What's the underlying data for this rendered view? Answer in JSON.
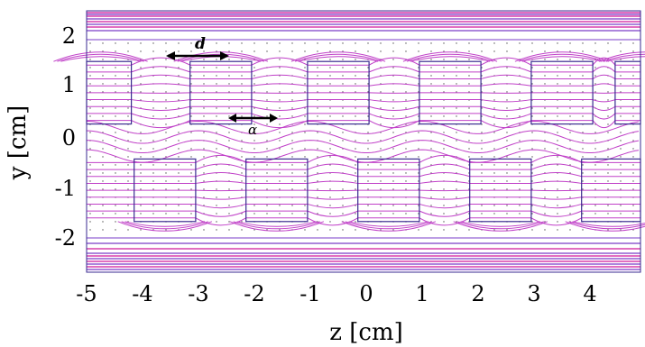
{
  "axes": {
    "xlabel": "z [cm]",
    "ylabel": "y [cm]",
    "xticks": [
      "-5",
      "-4",
      "-3",
      "-2",
      "-1",
      "0",
      "1",
      "2",
      "3",
      "4"
    ],
    "yticks": [
      "2",
      "1",
      "0",
      "-1",
      "-2"
    ],
    "xlim": [
      -5,
      5
    ],
    "ylim": [
      -2.5,
      2.5
    ]
  },
  "annotations": {
    "d_label": "d",
    "alpha_label": "α"
  },
  "structure": {
    "upper_row_centers_z": [
      -4.75,
      -2.6,
      -0.5,
      1.5,
      3.5,
      5.0
    ],
    "lower_row_centers_z": [
      -3.6,
      -1.6,
      0.4,
      2.4,
      4.4
    ],
    "upper_y_range": [
      0.35,
      1.6
    ],
    "lower_y_range": [
      -1.6,
      -0.35
    ],
    "block_width_cm": 1.1
  },
  "colors": {
    "field_lines": "#c040c8",
    "block_outline": "#3a2a90",
    "rails_magenta": "#d0189a",
    "rails_violet": "#7a3cc8",
    "arrow": "#000000",
    "dots": "#555555"
  }
}
